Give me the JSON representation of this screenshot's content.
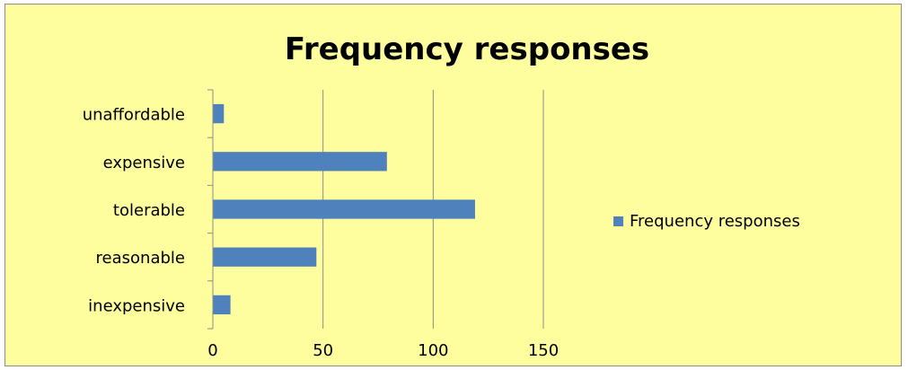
{
  "chart_data": {
    "type": "bar",
    "orientation": "horizontal",
    "title": "Frequency responses",
    "categories": [
      "unaffordable",
      "expensive",
      "tolerable",
      "reasonable",
      "inexpensive"
    ],
    "series": [
      {
        "name": "Frequency responses",
        "values": [
          5,
          79,
          119,
          47,
          8
        ]
      }
    ],
    "xlim": [
      0,
      150
    ],
    "xticks": [
      "0",
      "50",
      "100",
      "150"
    ],
    "grid": "vertical",
    "legend": "right",
    "colors": {
      "bar": "#4f81bd",
      "background": "#fefe9f",
      "grid": "#8c8c8c",
      "text": "#000000"
    }
  }
}
